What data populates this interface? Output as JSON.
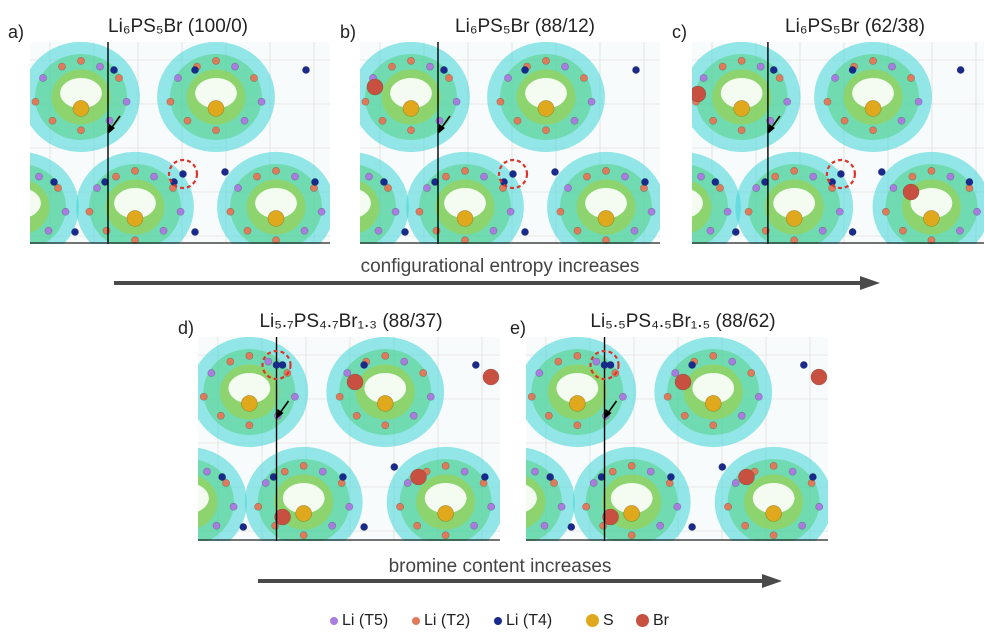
{
  "panels": [
    {
      "letter": "a)",
      "title": "Li₆PS₅Br (100/0)",
      "variant": "a"
    },
    {
      "letter": "b)",
      "title": "Li₆PS₅Br (88/12)",
      "variant": "b"
    },
    {
      "letter": "c)",
      "title": "Li₆PS₅Br (62/38)",
      "variant": "c"
    },
    {
      "letter": "d)",
      "title": "Li₅.₇PS₄.₇Br₁.₃ (88/37)",
      "variant": "d"
    },
    {
      "letter": "e)",
      "title": "Li₅.₅PS₄.₅Br₁.₅ (88/62)",
      "variant": "e"
    }
  ],
  "arrows": {
    "top_label": "configurational entropy increases",
    "bottom_label": "bromine content increases"
  },
  "legend": [
    {
      "label": "Li (T5)",
      "color": "#a97ce0",
      "size": 8
    },
    {
      "label": "Li (T2)",
      "color": "#e07a5a",
      "size": 8
    },
    {
      "label": "Li (T4)",
      "color": "#1a2a8c",
      "size": 8
    },
    {
      "label": "S",
      "color": "#e0a81c",
      "size": 13
    },
    {
      "label": "Br",
      "color": "#c85040",
      "size": 13
    }
  ],
  "colors": {
    "isosurface_outer": "#3fd6d8",
    "isosurface_mid": "#58d28a",
    "isosurface_inner": "#a6cf3a",
    "highlight_circle": "#d9362b"
  }
}
